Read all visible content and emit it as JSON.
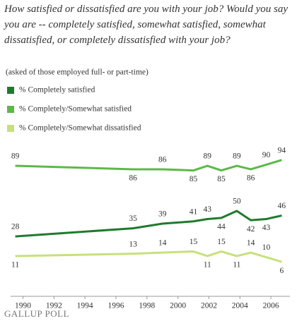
{
  "chart_data": {
    "type": "line",
    "title": "How satisfied or dissatisfied are you with your job? Would you say you are -- completely satisfied, somewhat satisfied, somewhat dissatisfied, or completely dissatisfied with your job?",
    "subtitle": "(asked of those employed full- or part-time)",
    "source": "GALLUP POLL",
    "x": [
      1989.5,
      1997.1,
      1999.0,
      2001.0,
      2001.9,
      2002.8,
      2003.8,
      2004.7,
      2005.7,
      2006.7
    ],
    "xlim": [
      1989.2,
      2007
    ],
    "xticks": [
      1990,
      1992,
      1994,
      1996,
      1998,
      2000,
      2002,
      2004,
      2006
    ],
    "ylim": [
      0,
      100
    ],
    "series": [
      {
        "name": "% Completely satisfied",
        "color": "#1f7a2e",
        "values": [
          28,
          35,
          39,
          41,
          43,
          44,
          50,
          42,
          43,
          46
        ]
      },
      {
        "name": "% Completely/Somewhat satisfied",
        "color": "#5cb947",
        "values": [
          89,
          86,
          86,
          85,
          89,
          85,
          89,
          86,
          90,
          94
        ]
      },
      {
        "name": "% Completely/Somewhat dissatisfied",
        "color": "#c6e17c",
        "values": [
          11,
          13,
          14,
          15,
          11,
          15,
          11,
          14,
          10,
          6
        ]
      }
    ]
  }
}
